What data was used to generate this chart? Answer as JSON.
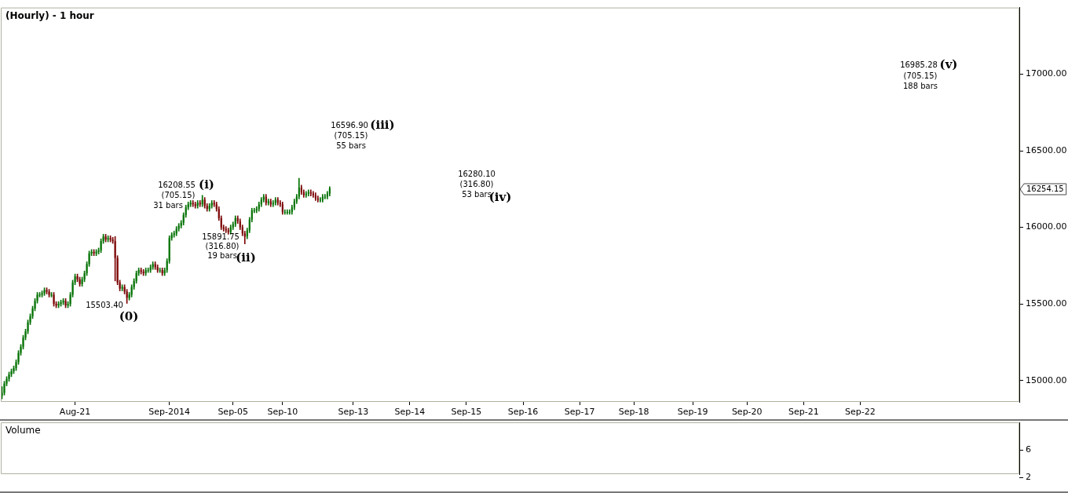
{
  "chart_data": [
    {
      "type": "candlestick",
      "title": "(Hourly) - 1 hour",
      "categories": [
        null,
        null,
        null,
        null,
        null,
        null,
        null,
        null,
        null,
        null,
        null,
        null,
        null,
        null,
        null,
        null,
        null,
        null,
        null,
        null,
        null,
        null,
        null,
        null,
        null,
        null,
        null,
        null,
        null,
        null,
        null,
        "Aug-21",
        null,
        null,
        null,
        null,
        null,
        null,
        null,
        null,
        null,
        null,
        null,
        null,
        null,
        null,
        null,
        null,
        null,
        null,
        null,
        null,
        null,
        null,
        null,
        null,
        null,
        null,
        null,
        null,
        null,
        null,
        null,
        null,
        null,
        null,
        null,
        null,
        null,
        null,
        null,
        "Sep-2014",
        null,
        null,
        null,
        null,
        null,
        null,
        null,
        null,
        null,
        null,
        null,
        null,
        null,
        null,
        null,
        null,
        null,
        null,
        null,
        null,
        null,
        null,
        null,
        null,
        null,
        null,
        "Sep-05",
        null,
        null,
        null,
        null,
        null,
        null,
        null,
        null,
        null,
        null,
        null,
        null,
        null,
        null,
        null,
        null,
        null,
        null,
        null,
        null,
        "Sep-10",
        null,
        null,
        null,
        null,
        null,
        null,
        null,
        null,
        null,
        null,
        null,
        null,
        null,
        null,
        null,
        null,
        null,
        null,
        null,
        null,
        null,
        null,
        null,
        null,
        null,
        null,
        null,
        null,
        null,
        "Sep-13",
        null,
        null,
        null,
        null,
        null,
        null,
        null,
        null,
        null,
        null,
        null,
        null,
        null,
        null,
        null,
        null,
        null,
        null,
        null,
        null,
        null,
        null,
        null,
        "Sep-14",
        null,
        null,
        null,
        null,
        null,
        null,
        null,
        null,
        null,
        null,
        null,
        null,
        null,
        null,
        null,
        null,
        null,
        null,
        null,
        null,
        null,
        null,
        null,
        "Sep-15",
        null,
        null,
        null,
        null,
        null,
        null,
        null,
        null,
        null,
        null,
        null,
        null,
        null,
        null,
        null,
        null,
        null,
        null,
        null,
        null,
        null,
        null,
        null,
        "Sep-16",
        null,
        null,
        null,
        null,
        null,
        null,
        null,
        null,
        null,
        null,
        null,
        null,
        null,
        null,
        null,
        null,
        null,
        null,
        null,
        null,
        null,
        null,
        null,
        "Sep-17",
        null,
        null,
        null,
        null,
        null,
        null,
        null,
        null,
        null,
        null,
        null,
        null,
        null,
        null,
        null,
        null,
        null,
        null,
        null,
        null,
        null,
        null,
        "Sep-18",
        null,
        null,
        null,
        null,
        null,
        null,
        null,
        null,
        null,
        null,
        null,
        null,
        null,
        null,
        null,
        null,
        null,
        null,
        null,
        null,
        null,
        null,
        null,
        null,
        "Sep-19",
        null,
        null,
        null,
        null,
        null,
        null,
        null,
        null,
        null,
        null,
        null,
        null,
        null,
        null,
        null,
        null,
        null,
        null,
        null,
        null,
        null,
        null,
        "Sep-20",
        null,
        null,
        null,
        null,
        null,
        null,
        null,
        null,
        null,
        null,
        null,
        null,
        null,
        null,
        null,
        null,
        null,
        null,
        null,
        null,
        null,
        null,
        null,
        "Sep-21",
        null,
        null,
        null,
        null,
        null,
        null,
        null,
        null,
        null,
        null,
        null,
        null,
        null,
        null,
        null,
        null,
        null,
        null,
        null,
        null,
        null,
        null,
        null,
        "Sep-22",
        null,
        null,
        null,
        null,
        null,
        null,
        null,
        null,
        null,
        null,
        null,
        null,
        null,
        null,
        null,
        null,
        null,
        null,
        null,
        null,
        null,
        null,
        null,
        null,
        null,
        null,
        null,
        null,
        null,
        null,
        null,
        null,
        null,
        null,
        null,
        null,
        null,
        null,
        null,
        null,
        null,
        null,
        null,
        null,
        null,
        null,
        null,
        null,
        null,
        null,
        null,
        null,
        null,
        null,
        null,
        null,
        null,
        null,
        null,
        null,
        null,
        null,
        null,
        null,
        null,
        null,
        null
      ],
      "ohlc": [
        [
          14900,
          14960,
          14880,
          14920
        ],
        [
          14920,
          14995,
          14905,
          14980
        ],
        [
          14980,
          15025,
          14965,
          15010
        ],
        [
          15010,
          15055,
          14995,
          15040
        ],
        [
          15040,
          15075,
          15025,
          15060
        ],
        [
          15060,
          15095,
          15045,
          15080
        ],
        [
          15080,
          15135,
          15065,
          15120
        ],
        [
          15120,
          15195,
          15105,
          15180
        ],
        [
          15180,
          15235,
          15165,
          15220
        ],
        [
          15220,
          15295,
          15205,
          15280
        ],
        [
          15280,
          15335,
          15265,
          15320
        ],
        [
          15320,
          15395,
          15305,
          15380
        ],
        [
          15380,
          15435,
          15365,
          15420
        ],
        [
          15420,
          15485,
          15405,
          15470
        ],
        [
          15470,
          15535,
          15455,
          15520
        ],
        [
          15520,
          15575,
          15505,
          15560
        ],
        [
          15560,
          15575,
          15545,
          15560
        ],
        [
          15560,
          15585,
          15545,
          15570
        ],
        [
          15570,
          15605,
          15555,
          15590
        ],
        [
          15590,
          15605,
          15565,
          15580
        ],
        [
          15580,
          15595,
          15545,
          15560
        ],
        [
          15560,
          15575,
          15545,
          15560
        ],
        [
          15560,
          15575,
          15485,
          15500
        ],
        [
          15500,
          15515,
          15475,
          15490
        ],
        [
          15490,
          15515,
          15475,
          15500
        ],
        [
          15500,
          15525,
          15485,
          15510
        ],
        [
          15510,
          15535,
          15495,
          15520
        ],
        [
          15520,
          15535,
          15475,
          15490
        ],
        [
          15490,
          15515,
          15475,
          15500
        ],
        [
          15500,
          15575,
          15485,
          15560
        ],
        [
          15560,
          15655,
          15545,
          15640
        ],
        [
          15640,
          15695,
          15625,
          15680
        ],
        [
          15680,
          15695,
          15645,
          15660
        ],
        [
          15660,
          15675,
          15615,
          15630
        ],
        [
          15630,
          15675,
          15615,
          15660
        ],
        [
          15660,
          15715,
          15645,
          15700
        ],
        [
          15700,
          15775,
          15685,
          15760
        ],
        [
          15760,
          15845,
          15745,
          15830
        ],
        [
          15830,
          15855,
          15815,
          15840
        ],
        [
          15840,
          15855,
          15815,
          15830
        ],
        [
          15830,
          15855,
          15815,
          15840
        ],
        [
          15840,
          15865,
          15825,
          15850
        ],
        [
          15850,
          15925,
          15835,
          15910
        ],
        [
          15910,
          15955,
          15895,
          15940
        ],
        [
          15940,
          15955,
          15905,
          15920
        ],
        [
          15920,
          15945,
          15905,
          15930
        ],
        [
          15930,
          15945,
          15905,
          15920
        ],
        [
          15920,
          15935,
          15895,
          15910
        ],
        [
          15910,
          15940,
          15650,
          15800
        ],
        [
          15800,
          15815,
          15625,
          15640
        ],
        [
          15640,
          15655,
          15585,
          15600
        ],
        [
          15600,
          15625,
          15585,
          15610
        ],
        [
          15610,
          15625,
          15565,
          15580
        ],
        [
          15580,
          15595,
          15503.4,
          15540
        ],
        [
          15540,
          15575,
          15525,
          15560
        ],
        [
          15560,
          15625,
          15545,
          15610
        ],
        [
          15610,
          15665,
          15595,
          15650
        ],
        [
          15650,
          15715,
          15635,
          15700
        ],
        [
          15700,
          15735,
          15685,
          15720
        ],
        [
          15720,
          15735,
          15695,
          15710
        ],
        [
          15710,
          15725,
          15685,
          15700
        ],
        [
          15700,
          15735,
          15685,
          15720
        ],
        [
          15720,
          15735,
          15705,
          15720
        ],
        [
          15720,
          15755,
          15705,
          15740
        ],
        [
          15740,
          15775,
          15725,
          15760
        ],
        [
          15760,
          15775,
          15725,
          15740
        ],
        [
          15740,
          15755,
          15705,
          15720
        ],
        [
          15720,
          15735,
          15705,
          15720
        ],
        [
          15720,
          15735,
          15685,
          15700
        ],
        [
          15700,
          15735,
          15685,
          15720
        ],
        [
          15720,
          15795,
          15705,
          15780
        ],
        [
          15780,
          15945,
          15765,
          15930
        ],
        [
          15930,
          15965,
          15915,
          15950
        ],
        [
          15950,
          15975,
          15935,
          15960
        ],
        [
          15960,
          16005,
          15945,
          15990
        ],
        [
          15990,
          16025,
          15975,
          16010
        ],
        [
          16010,
          16045,
          15995,
          16030
        ],
        [
          16030,
          16095,
          16015,
          16080
        ],
        [
          16080,
          16145,
          16065,
          16130
        ],
        [
          16130,
          16165,
          16115,
          16150
        ],
        [
          16150,
          16175,
          16135,
          16160
        ],
        [
          16160,
          16175,
          16135,
          16150
        ],
        [
          16150,
          16165,
          16125,
          16140
        ],
        [
          16140,
          16175,
          16125,
          16160
        ],
        [
          16160,
          16175,
          16135,
          16150
        ],
        [
          16150,
          16208.55,
          16135,
          16180
        ],
        [
          16180,
          16195,
          16125,
          16140
        ],
        [
          16140,
          16155,
          16105,
          16120
        ],
        [
          16120,
          16155,
          16105,
          16140
        ],
        [
          16140,
          16175,
          16125,
          16160
        ],
        [
          16160,
          16175,
          16135,
          16150
        ],
        [
          16150,
          16165,
          16105,
          16120
        ],
        [
          16120,
          16135,
          16045,
          16060
        ],
        [
          16060,
          16075,
          15985,
          16000
        ],
        [
          16000,
          16015,
          15975,
          15990
        ],
        [
          15990,
          16005,
          15965,
          15980
        ],
        [
          15980,
          15995,
          15955,
          15970
        ],
        [
          15970,
          16015,
          15955,
          16000
        ],
        [
          16000,
          16035,
          15985,
          16020
        ],
        [
          16020,
          16075,
          16005,
          16060
        ],
        [
          16060,
          16075,
          16025,
          16040
        ],
        [
          16040,
          16055,
          15985,
          16000
        ],
        [
          16000,
          16015,
          15945,
          15960
        ],
        [
          15960,
          15975,
          15891.75,
          15940
        ],
        [
          15940,
          15995,
          15925,
          15980
        ],
        [
          15980,
          16065,
          15965,
          16050
        ],
        [
          16050,
          16125,
          16035,
          16110
        ],
        [
          16110,
          16125,
          16095,
          16110
        ],
        [
          16110,
          16135,
          16095,
          16120
        ],
        [
          16120,
          16165,
          16105,
          16150
        ],
        [
          16150,
          16195,
          16135,
          16180
        ],
        [
          16180,
          16215,
          16165,
          16200
        ],
        [
          16200,
          16215,
          16145,
          16160
        ],
        [
          16160,
          16185,
          16145,
          16170
        ],
        [
          16170,
          16185,
          16135,
          16150
        ],
        [
          16150,
          16175,
          16135,
          16160
        ],
        [
          16160,
          16195,
          16145,
          16180
        ],
        [
          16180,
          16195,
          16145,
          16160
        ],
        [
          16160,
          16175,
          16135,
          16150
        ],
        [
          16150,
          16165,
          16085,
          16100
        ],
        [
          16100,
          16115,
          16085,
          16100
        ],
        [
          16100,
          16115,
          16085,
          16100
        ],
        [
          16100,
          16115,
          16085,
          16100
        ],
        [
          16100,
          16145,
          16085,
          16130
        ],
        [
          16130,
          16185,
          16115,
          16170
        ],
        [
          16170,
          16215,
          16155,
          16200
        ],
        [
          16200,
          16320,
          16185,
          16260
        ],
        [
          16260,
          16275,
          16215,
          16230
        ],
        [
          16230,
          16245,
          16195,
          16210
        ],
        [
          16210,
          16235,
          16195,
          16220
        ],
        [
          16220,
          16245,
          16205,
          16230
        ],
        [
          16230,
          16245,
          16205,
          16220
        ],
        [
          16220,
          16235,
          16195,
          16210
        ],
        [
          16210,
          16225,
          16175,
          16190
        ],
        [
          16190,
          16205,
          16165,
          16180
        ],
        [
          16180,
          16195,
          16165,
          16180
        ],
        [
          16180,
          16215,
          16165,
          16200
        ],
        [
          16200,
          16215,
          16185,
          16200
        ],
        [
          16200,
          16235,
          16185,
          16220
        ],
        [
          16220,
          16265,
          16205,
          16254.15
        ],
        null,
        null,
        null,
        null,
        null,
        null,
        null,
        null,
        null,
        null,
        null,
        null,
        null,
        null,
        null,
        null,
        null,
        null,
        null,
        null,
        null,
        null,
        null,
        null,
        null,
        null,
        null,
        null,
        null,
        null,
        null,
        null,
        null,
        null,
        null,
        null,
        null,
        null,
        null,
        null,
        null,
        null,
        null,
        null,
        null,
        null,
        null,
        null,
        null,
        null,
        null,
        null,
        null,
        null,
        null,
        null,
        null,
        null,
        null,
        null,
        null,
        null,
        null,
        null,
        null,
        null,
        null,
        null,
        null,
        null,
        null,
        null,
        null,
        null,
        null,
        null,
        null,
        null,
        null,
        null,
        null,
        null,
        null,
        null,
        null,
        null,
        null,
        null,
        null,
        null,
        null,
        null,
        null,
        null,
        null,
        null,
        null,
        null,
        null,
        null,
        null,
        null,
        null,
        null,
        null,
        null,
        null,
        null,
        null,
        null,
        null,
        null,
        null,
        null,
        null,
        null,
        null,
        null,
        null,
        null,
        null,
        null,
        null,
        null,
        null,
        null,
        null,
        null,
        null,
        null,
        null,
        null,
        null,
        null,
        null,
        null,
        null,
        null,
        null,
        null,
        null,
        null,
        null,
        null,
        null,
        null,
        null,
        null,
        null,
        null,
        null,
        null,
        null,
        null,
        null,
        null,
        null,
        null,
        null,
        null,
        null,
        null,
        null,
        null,
        null,
        null,
        null,
        null,
        null,
        null,
        null,
        null,
        null,
        null,
        null,
        null,
        null,
        null,
        null,
        null,
        null,
        null,
        null,
        null,
        null,
        null,
        null,
        null,
        null,
        null,
        null,
        null,
        null,
        null,
        null,
        null,
        null,
        null,
        null,
        null,
        null,
        null,
        null,
        null,
        null,
        null,
        null,
        null,
        null,
        null,
        null,
        null,
        null,
        null,
        null,
        null,
        null,
        null,
        null,
        null,
        null,
        null,
        null,
        null,
        null,
        null,
        null,
        null,
        null,
        null,
        null,
        null,
        null,
        null,
        null,
        null,
        null,
        null,
        null,
        null,
        null,
        null,
        null,
        null,
        null,
        null,
        null,
        null,
        null,
        null,
        null,
        null,
        null,
        null,
        null,
        null,
        null,
        null,
        null,
        null,
        null,
        null,
        null,
        null,
        null,
        null,
        null,
        null,
        null,
        null,
        null,
        null,
        null,
        null,
        null,
        null,
        null,
        null,
        null,
        null,
        null,
        null,
        null,
        null,
        null,
        null,
        null,
        null,
        null,
        null,
        null,
        null
      ],
      "ylim": [
        14860,
        17435
      ],
      "yticks": [
        {
          "value": 15000,
          "label": "15000.00"
        },
        {
          "value": 15500,
          "label": "15500.00"
        },
        {
          "value": 16000,
          "label": "16000.00"
        },
        {
          "value": 16500,
          "label": "16500.00"
        },
        {
          "value": 17000,
          "label": "17000.00"
        }
      ],
      "annotations": [
        "15503.40",
        "(0)",
        "16208.55",
        "(i)",
        "(705.15)",
        "31 bars",
        "15891.75",
        "(316.80)",
        "19 bars",
        "(ii)",
        "16596.90",
        "(iii)",
        "(705.15)",
        "55 bars",
        "16280.10",
        "(316.80)",
        "53 bars",
        "(iv)",
        "16985.28",
        "(v)",
        "(705.15)",
        "188 bars",
        "16254.15"
      ]
    },
    {
      "type": "other",
      "title": "Volume",
      "annotations": [
        "6",
        "2"
      ]
    }
  ]
}
